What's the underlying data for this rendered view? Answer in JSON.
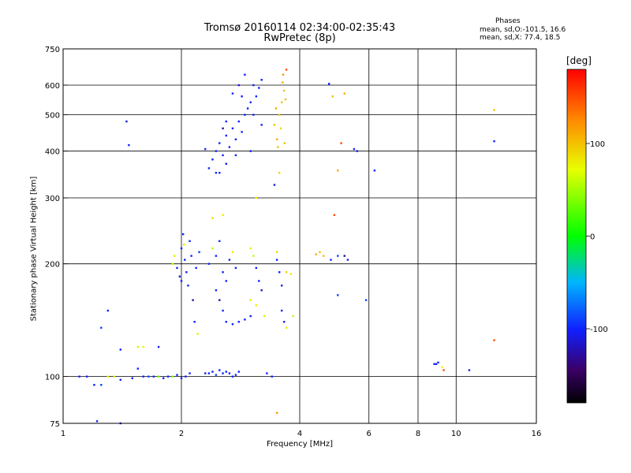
{
  "title": "Tromsø 20160114 02:34:00-02:35:43",
  "subtitle": "RwPretec (8p)",
  "phases": {
    "heading": "Phases",
    "o_line": "mean, sd,O:-101.5, 16.6",
    "x_line": "mean, sd,X:  77.4, 18.5"
  },
  "chart_data": {
    "type": "scatter",
    "xlabel": "Frequency [MHz]",
    "ylabel": "Stationary phase Virtual Height [km]",
    "x_scale": "log",
    "y_scale": "log",
    "xlim": [
      1,
      16
    ],
    "ylim": [
      75,
      750
    ],
    "x_ticks": [
      1,
      2,
      4,
      6,
      8,
      10,
      16
    ],
    "x_tick_labels": [
      "1",
      "2",
      "4",
      "6",
      "8",
      "10",
      "16"
    ],
    "x_grid": [
      2,
      4,
      6,
      8,
      10
    ],
    "y_ticks": [
      75,
      100,
      200,
      300,
      400,
      500,
      600,
      750
    ],
    "y_tick_labels": [
      "75",
      "100",
      "200",
      "300",
      "400",
      "500",
      "600",
      "750"
    ],
    "y_grid": [
      100,
      200,
      300,
      400,
      500,
      600
    ],
    "grid": true,
    "colorbar": {
      "unit": "[deg]",
      "range": [
        -180,
        180
      ],
      "ticks": [
        -100,
        0,
        100
      ],
      "tick_labels": [
        "-100",
        "0",
        "100"
      ]
    },
    "points": [
      [
        1.1,
        100,
        -100
      ],
      [
        1.15,
        100,
        -100
      ],
      [
        1.2,
        95,
        -100
      ],
      [
        1.25,
        135,
        -90
      ],
      [
        1.3,
        100,
        80
      ],
      [
        1.35,
        100,
        60
      ],
      [
        1.4,
        98,
        -100
      ],
      [
        1.5,
        99,
        -100
      ],
      [
        1.55,
        105,
        -100
      ],
      [
        1.6,
        100,
        -100
      ],
      [
        1.65,
        100,
        -90
      ],
      [
        1.7,
        100,
        -100
      ],
      [
        1.75,
        100,
        40
      ],
      [
        1.8,
        99,
        -100
      ],
      [
        1.85,
        100,
        -100
      ],
      [
        1.9,
        100,
        40
      ],
      [
        1.95,
        101,
        -100
      ],
      [
        2.0,
        99,
        -100
      ],
      [
        2.05,
        100,
        -100
      ],
      [
        2.1,
        102,
        -100
      ],
      [
        1.4,
        118,
        -100
      ],
      [
        1.55,
        120,
        60
      ],
      [
        1.6,
        120,
        70
      ],
      [
        1.75,
        120,
        -100
      ],
      [
        1.3,
        150,
        -100
      ],
      [
        1.45,
        480,
        -110
      ],
      [
        1.47,
        415,
        -100
      ],
      [
        1.9,
        200,
        60
      ],
      [
        1.92,
        210,
        80
      ],
      [
        1.95,
        195,
        -100
      ],
      [
        1.98,
        185,
        -110
      ],
      [
        2.0,
        220,
        -100
      ],
      [
        2.02,
        240,
        -100
      ],
      [
        2.04,
        205,
        -100
      ],
      [
        2.06,
        190,
        -100
      ],
      [
        2.08,
        175,
        -100
      ],
      [
        2.1,
        230,
        -100
      ],
      [
        2.12,
        210,
        -100
      ],
      [
        2.14,
        160,
        -130
      ],
      [
        2.16,
        140,
        -100
      ],
      [
        2.18,
        195,
        -100
      ],
      [
        2.2,
        130,
        60
      ],
      [
        2.22,
        215,
        -90
      ],
      [
        2.0,
        180,
        -100
      ],
      [
        2.03,
        225,
        80
      ],
      [
        2.3,
        102,
        -100
      ],
      [
        2.35,
        102,
        -100
      ],
      [
        2.4,
        103,
        -100
      ],
      [
        2.45,
        101,
        -90
      ],
      [
        2.5,
        104,
        -100
      ],
      [
        2.55,
        102,
        -100
      ],
      [
        2.6,
        103,
        -100
      ],
      [
        2.65,
        102,
        -100
      ],
      [
        2.7,
        100,
        -100
      ],
      [
        2.75,
        101,
        -100
      ],
      [
        2.8,
        103,
        -100
      ],
      [
        2.35,
        200,
        -100
      ],
      [
        2.4,
        220,
        60
      ],
      [
        2.45,
        210,
        -100
      ],
      [
        2.5,
        230,
        -100
      ],
      [
        2.55,
        190,
        -100
      ],
      [
        2.6,
        180,
        -100
      ],
      [
        2.65,
        205,
        -100
      ],
      [
        2.7,
        215,
        80
      ],
      [
        2.75,
        195,
        -100
      ],
      [
        2.45,
        170,
        -100
      ],
      [
        2.5,
        160,
        -130
      ],
      [
        2.55,
        150,
        -100
      ],
      [
        2.6,
        140,
        -100
      ],
      [
        2.7,
        138,
        -100
      ],
      [
        2.8,
        140,
        -100
      ],
      [
        2.9,
        142,
        -100
      ],
      [
        3.0,
        145,
        -100
      ],
      [
        2.4,
        265,
        90
      ],
      [
        2.55,
        270,
        80
      ],
      [
        3.0,
        220,
        80
      ],
      [
        3.05,
        210,
        60
      ],
      [
        3.1,
        195,
        -100
      ],
      [
        3.15,
        180,
        -100
      ],
      [
        3.2,
        170,
        -110
      ],
      [
        3.1,
        155,
        80
      ],
      [
        3.0,
        160,
        80
      ],
      [
        3.25,
        145,
        60
      ],
      [
        3.3,
        102,
        -100
      ],
      [
        3.4,
        100,
        -100
      ],
      [
        3.1,
        300,
        80
      ],
      [
        3.5,
        205,
        -100
      ],
      [
        3.55,
        190,
        -100
      ],
      [
        3.6,
        175,
        -100
      ],
      [
        3.7,
        190,
        90
      ],
      [
        3.8,
        188,
        80
      ],
      [
        3.85,
        145,
        60
      ],
      [
        3.6,
        150,
        -100
      ],
      [
        3.65,
        140,
        -100
      ],
      [
        3.7,
        135,
        80
      ],
      [
        3.5,
        215,
        90
      ],
      [
        3.45,
        325,
        -110
      ],
      [
        2.35,
        360,
        -100
      ],
      [
        2.4,
        380,
        -100
      ],
      [
        2.45,
        400,
        -100
      ],
      [
        2.5,
        420,
        -100
      ],
      [
        2.55,
        390,
        -100
      ],
      [
        2.6,
        440,
        -100
      ],
      [
        2.65,
        410,
        -100
      ],
      [
        2.7,
        460,
        -100
      ],
      [
        2.75,
        430,
        -100
      ],
      [
        2.8,
        480,
        -100
      ],
      [
        2.85,
        450,
        -100
      ],
      [
        2.9,
        500,
        -100
      ],
      [
        2.95,
        520,
        -100
      ],
      [
        3.0,
        540,
        -100
      ],
      [
        3.05,
        500,
        -100
      ],
      [
        3.1,
        560,
        -100
      ],
      [
        3.15,
        590,
        -100
      ],
      [
        3.2,
        620,
        -100
      ],
      [
        2.9,
        640,
        -100
      ],
      [
        2.8,
        600,
        -110
      ],
      [
        2.7,
        570,
        -100
      ],
      [
        2.6,
        480,
        -100
      ],
      [
        2.5,
        350,
        -100
      ],
      [
        2.45,
        350,
        -100
      ],
      [
        2.6,
        370,
        -110
      ],
      [
        2.75,
        390,
        -100
      ],
      [
        3.0,
        400,
        -100
      ],
      [
        3.05,
        600,
        -100
      ],
      [
        3.2,
        470,
        -100
      ],
      [
        2.85,
        560,
        -100
      ],
      [
        2.55,
        460,
        -130
      ],
      [
        2.3,
        405,
        -100
      ],
      [
        3.45,
        470,
        100
      ],
      [
        3.5,
        430,
        110
      ],
      [
        3.55,
        500,
        100
      ],
      [
        3.6,
        540,
        100
      ],
      [
        3.62,
        610,
        110
      ],
      [
        3.65,
        580,
        100
      ],
      [
        3.58,
        460,
        90
      ],
      [
        3.48,
        520,
        110
      ],
      [
        3.63,
        640,
        120
      ],
      [
        3.7,
        660,
        150
      ],
      [
        3.52,
        410,
        100
      ],
      [
        3.66,
        420,
        100
      ],
      [
        3.55,
        350,
        90
      ],
      [
        3.68,
        550,
        100
      ],
      [
        4.4,
        212,
        110
      ],
      [
        4.5,
        215,
        100
      ],
      [
        4.6,
        210,
        100
      ],
      [
        4.8,
        205,
        -100
      ],
      [
        5.0,
        210,
        -90
      ],
      [
        5.2,
        210,
        -130
      ],
      [
        5.3,
        205,
        -100
      ],
      [
        4.9,
        270,
        150
      ],
      [
        5.0,
        355,
        110
      ],
      [
        4.85,
        560,
        100
      ],
      [
        4.75,
        605,
        -100
      ],
      [
        5.1,
        420,
        150
      ],
      [
        5.2,
        570,
        110
      ],
      [
        5.5,
        405,
        -100
      ],
      [
        5.6,
        400,
        -100
      ],
      [
        6.2,
        355,
        -100
      ],
      [
        5.0,
        165,
        -90
      ],
      [
        5.9,
        160,
        -90
      ],
      [
        8.8,
        108,
        -100
      ],
      [
        8.9,
        108,
        -100
      ],
      [
        9.0,
        109,
        -100
      ],
      [
        9.2,
        106,
        70
      ],
      [
        9.3,
        104,
        150
      ],
      [
        10.8,
        104,
        -100
      ],
      [
        12.5,
        125,
        150
      ],
      [
        12.5,
        425,
        -100
      ],
      [
        12.5,
        515,
        100
      ],
      [
        1.25,
        95,
        -90
      ],
      [
        1.22,
        76,
        -100
      ],
      [
        1.4,
        75,
        -100
      ],
      [
        3.5,
        80,
        120
      ]
    ]
  }
}
